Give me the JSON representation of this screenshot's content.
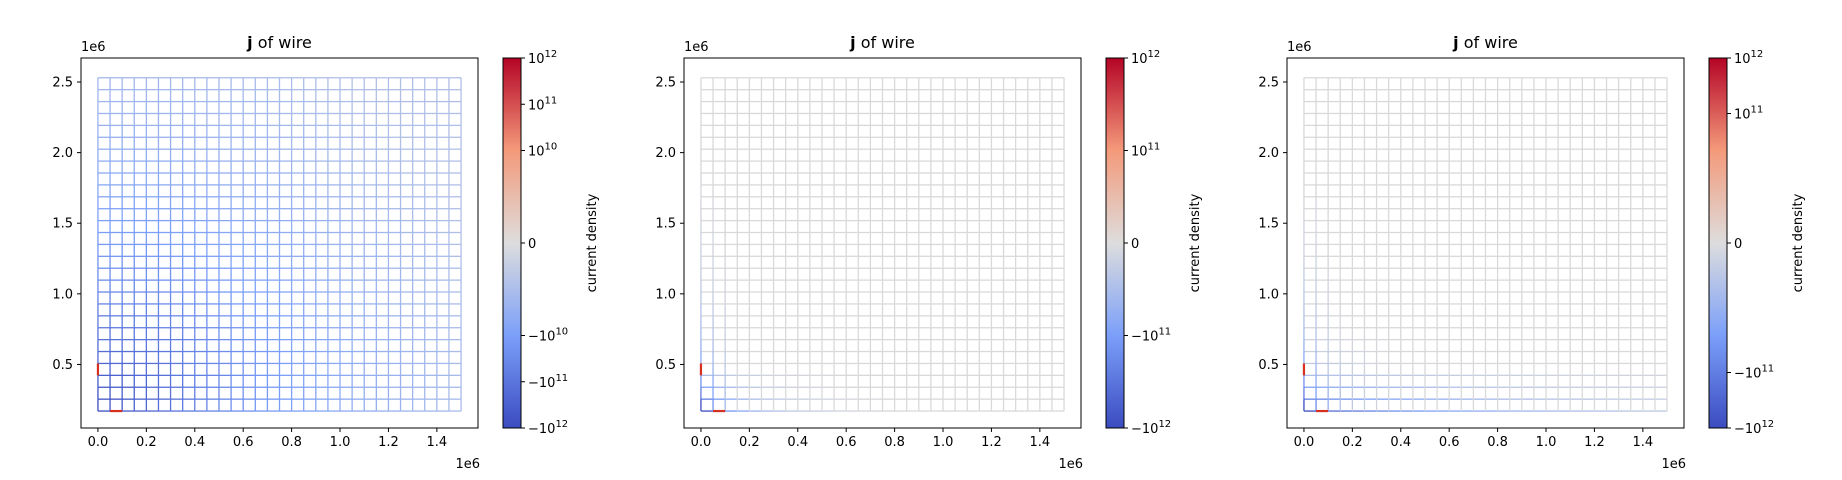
{
  "chart_data": [
    {
      "type": "heatmap",
      "title_bold": "j",
      "title_rest": " of wire",
      "x_offset_label": "1e6",
      "y_offset_label": "1e6",
      "xlim": [
        -0.07,
        1.57
      ],
      "ylim": [
        0.05,
        2.67
      ],
      "x_ticks": [
        0.0,
        0.2,
        0.4,
        0.6,
        0.8,
        1.0,
        1.2,
        1.4
      ],
      "x_tick_labels": [
        "0.0",
        "0.2",
        "0.4",
        "0.6",
        "0.8",
        "1.0",
        "1.2",
        "1.4"
      ],
      "y_ticks": [
        0.5,
        1.0,
        1.5,
        2.0,
        2.5
      ],
      "y_tick_labels": [
        "0.5",
        "1.0",
        "1.5",
        "2.0",
        "2.5"
      ],
      "grid_x_range": [
        0.0,
        1.5
      ],
      "grid_y_range": [
        0.17,
        2.53
      ],
      "grid_columns": 30,
      "grid_rows": 28,
      "current_decay": "slow",
      "colorbar": {
        "label": "current density",
        "scale": "symlog",
        "ticks": [
          {
            "level": 1.0,
            "base": "10",
            "exp": "12",
            "neg": false
          },
          {
            "level": 0.75,
            "base": "10",
            "exp": "11",
            "neg": false
          },
          {
            "level": 0.5,
            "base": "10",
            "exp": "10",
            "neg": false
          },
          {
            "level": 0.0,
            "base": "0",
            "exp": "",
            "neg": false
          },
          {
            "level": -0.5,
            "base": "10",
            "exp": "10",
            "neg": true
          },
          {
            "level": -0.75,
            "base": "10",
            "exp": "11",
            "neg": true
          },
          {
            "level": -1.0,
            "base": "10",
            "exp": "12",
            "neg": true
          }
        ]
      }
    },
    {
      "type": "heatmap",
      "title_bold": "j",
      "title_rest": " of wire",
      "x_offset_label": "1e6",
      "y_offset_label": "1e6",
      "xlim": [
        -0.07,
        1.57
      ],
      "ylim": [
        0.05,
        2.67
      ],
      "x_ticks": [
        0.0,
        0.2,
        0.4,
        0.6,
        0.8,
        1.0,
        1.2,
        1.4
      ],
      "x_tick_labels": [
        "0.0",
        "0.2",
        "0.4",
        "0.6",
        "0.8",
        "1.0",
        "1.2",
        "1.4"
      ],
      "y_ticks": [
        0.5,
        1.0,
        1.5,
        2.0,
        2.5
      ],
      "y_tick_labels": [
        "0.5",
        "1.0",
        "1.5",
        "2.0",
        "2.5"
      ],
      "grid_x_range": [
        0.0,
        1.5
      ],
      "grid_y_range": [
        0.17,
        2.53
      ],
      "grid_columns": 30,
      "grid_rows": 28,
      "current_decay": "fast",
      "colorbar": {
        "label": "current density",
        "scale": "symlog",
        "ticks": [
          {
            "level": 1.0,
            "base": "10",
            "exp": "12",
            "neg": false
          },
          {
            "level": 0.5,
            "base": "10",
            "exp": "11",
            "neg": false
          },
          {
            "level": 0.0,
            "base": "0",
            "exp": "",
            "neg": false
          },
          {
            "level": -0.5,
            "base": "10",
            "exp": "11",
            "neg": true
          },
          {
            "level": -1.0,
            "base": "10",
            "exp": "12",
            "neg": true
          }
        ]
      }
    },
    {
      "type": "heatmap",
      "title_bold": "j",
      "title_rest": " of wire",
      "x_offset_label": "1e6",
      "y_offset_label": "1e6",
      "xlim": [
        -0.07,
        1.57
      ],
      "ylim": [
        0.05,
        2.67
      ],
      "x_ticks": [
        0.0,
        0.2,
        0.4,
        0.6,
        0.8,
        1.0,
        1.2,
        1.4
      ],
      "x_tick_labels": [
        "0.0",
        "0.2",
        "0.4",
        "0.6",
        "0.8",
        "1.0",
        "1.2",
        "1.4"
      ],
      "y_ticks": [
        0.5,
        1.0,
        1.5,
        2.0,
        2.5
      ],
      "y_tick_labels": [
        "0.5",
        "1.0",
        "1.5",
        "2.0",
        "2.5"
      ],
      "grid_x_range": [
        0.0,
        1.5
      ],
      "grid_y_range": [
        0.17,
        2.53
      ],
      "grid_columns": 30,
      "grid_rows": 28,
      "current_decay": "medium",
      "colorbar": {
        "label": "current density",
        "scale": "symlog",
        "ticks": [
          {
            "level": 1.0,
            "base": "10",
            "exp": "12",
            "neg": false
          },
          {
            "level": 0.7,
            "base": "10",
            "exp": "11",
            "neg": false
          },
          {
            "level": 0.0,
            "base": "0",
            "exp": "",
            "neg": false
          },
          {
            "level": -0.7,
            "base": "10",
            "exp": "11",
            "neg": true
          },
          {
            "level": -1.0,
            "base": "10",
            "exp": "12",
            "neg": true
          }
        ]
      }
    }
  ]
}
